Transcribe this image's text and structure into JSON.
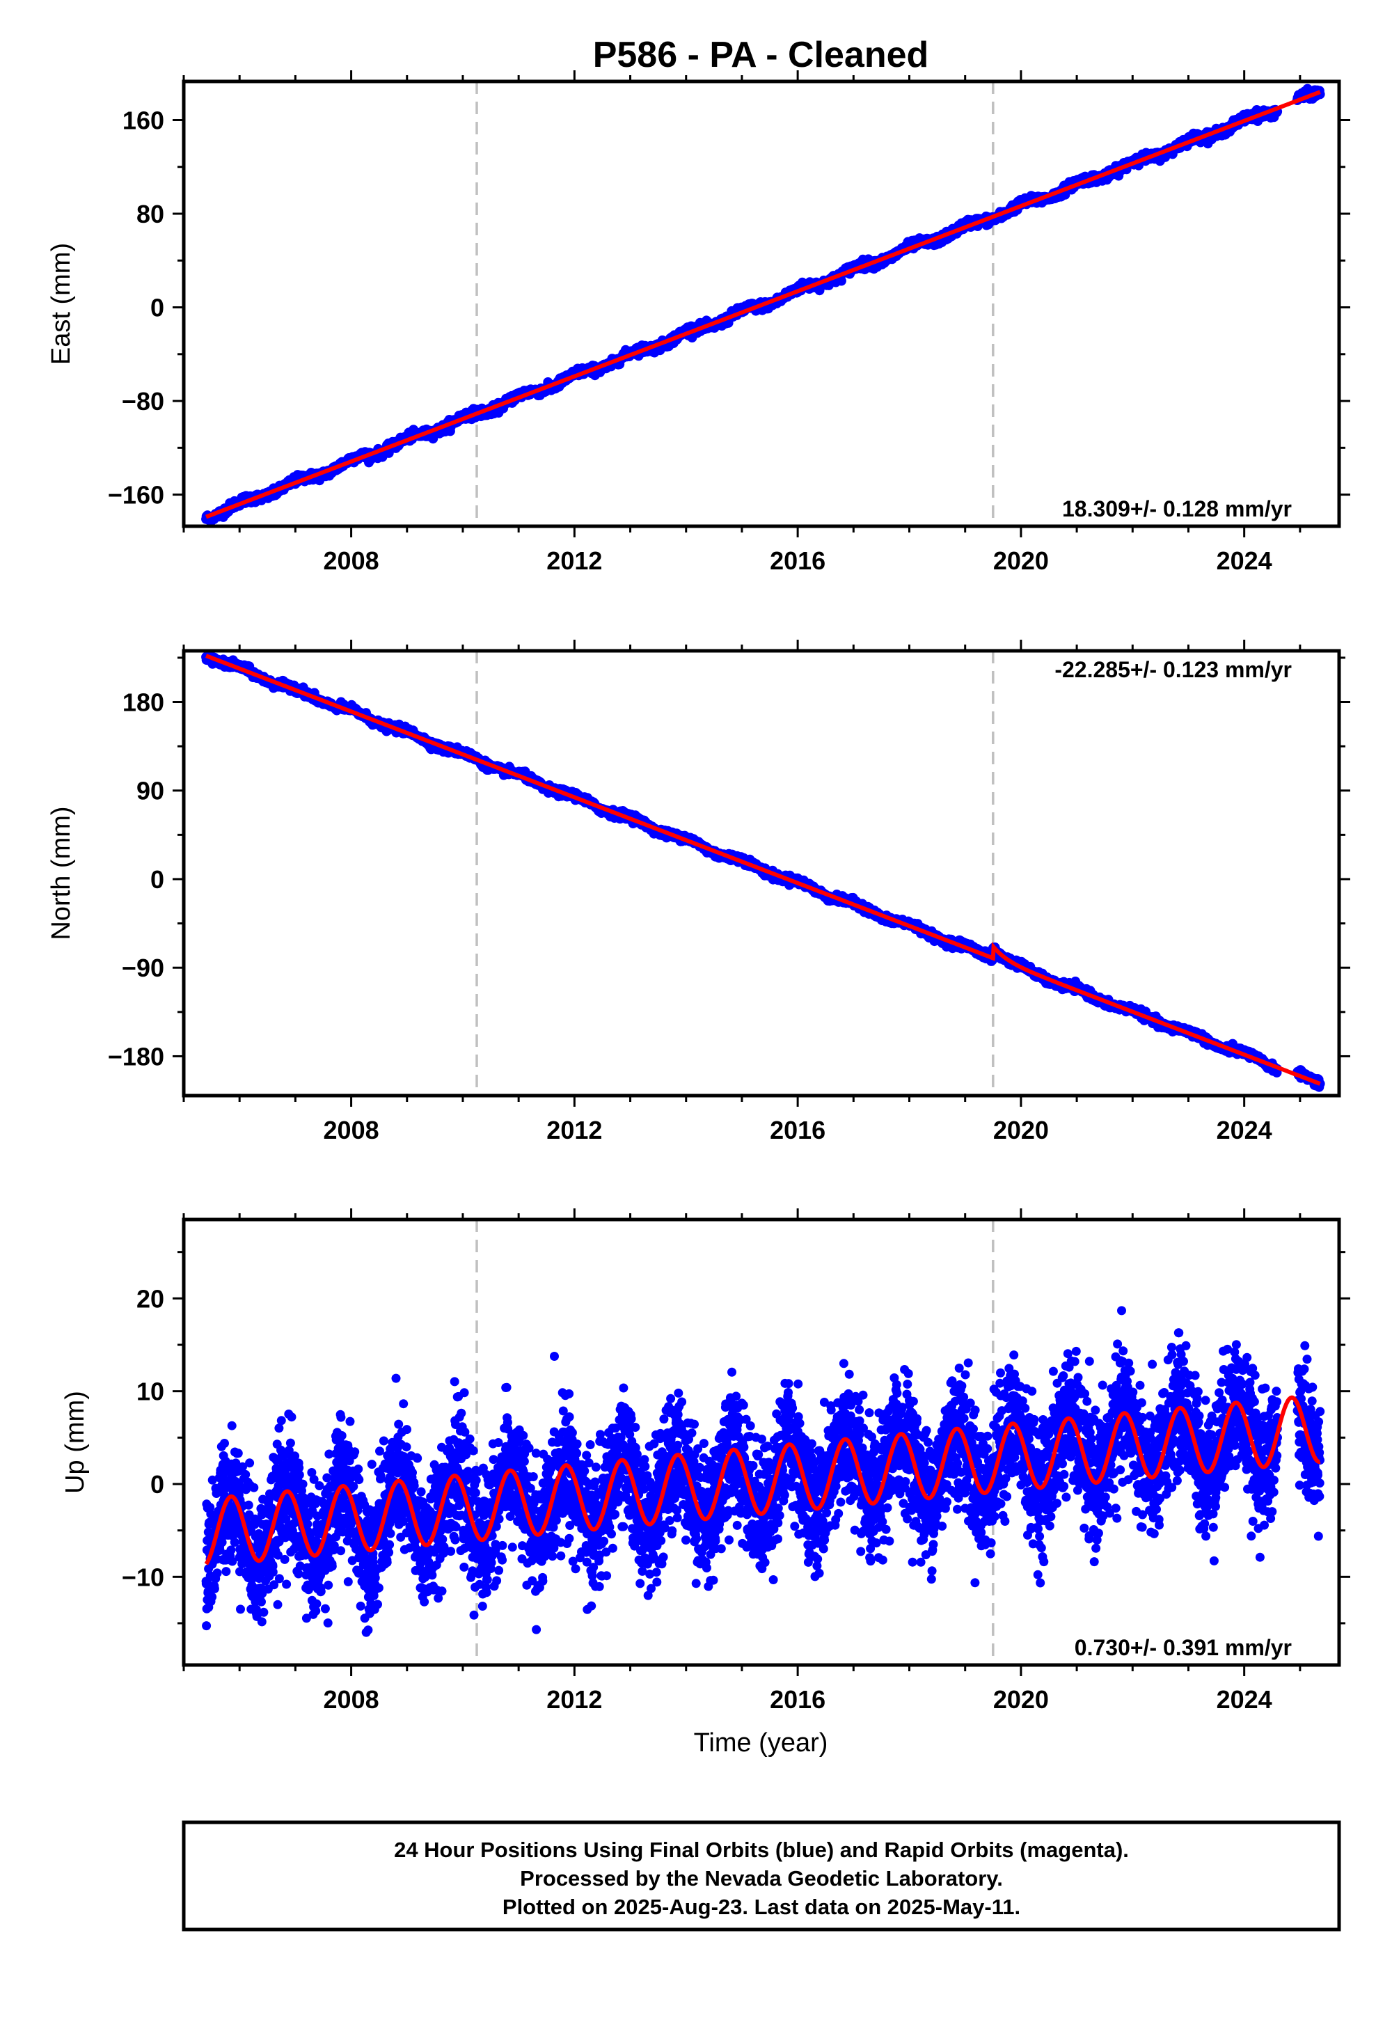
{
  "title": "P586  - PA - Cleaned",
  "xlabel": "Time (year)",
  "colors": {
    "points": "#0000ff",
    "fit": "#ff0000",
    "event_line": "#c0c0c0",
    "frame": "#000000"
  },
  "x_ticks": [
    2008,
    2012,
    2016,
    2020,
    2024
  ],
  "event_years": [
    2010.25,
    2019.5
  ],
  "footer": {
    "line1": "24 Hour Positions Using Final Orbits (blue) and Rapid Orbits (magenta).",
    "line2": "Processed by the Nevada Geodetic Laboratory.",
    "line3": "Plotted on 2025-Aug-23. Last data on 2025-May-11."
  },
  "chart_data": [
    {
      "type": "scatter",
      "component": "east",
      "ylabel": "East (mm)",
      "xlim": [
        2005.0,
        2025.7
      ],
      "ylim": [
        -187,
        193
      ],
      "yticks": [
        160,
        80,
        0,
        -80,
        -160
      ],
      "rate": "18.309+/- 0.128 mm/yr",
      "rate_position": "bottom-right",
      "x_start": 2005.4,
      "x_end": 2025.36,
      "y_start": -179,
      "y_end": 184,
      "annual_amplitude": 2.2,
      "scatter_sd": 1.8,
      "offset_at_2019_5": 0,
      "fit_curve": "line",
      "series": [
        {
          "name": "24 Hour Positions",
          "color": "#0000ff"
        }
      ]
    },
    {
      "type": "scatter",
      "component": "north",
      "ylabel": "North (mm)",
      "xlim": [
        2005.0,
        2025.7
      ],
      "ylim": [
        -220,
        232
      ],
      "yticks": [
        180,
        90,
        0,
        -90,
        -180
      ],
      "rate": "-22.285+/- 0.123 mm/yr",
      "rate_position": "top-right",
      "x_start": 2005.4,
      "x_end": 2025.36,
      "y_start": 227,
      "y_end": -208,
      "annual_amplitude": 2.2,
      "scatter_sd": 1.8,
      "offset_at_2019_5": 12,
      "fit_curve": "line",
      "series": [
        {
          "name": "24 Hour Positions",
          "color": "#0000ff"
        }
      ]
    },
    {
      "type": "scatter",
      "component": "up",
      "ylabel": "Up (mm)",
      "xlim": [
        2005.0,
        2025.7
      ],
      "ylim": [
        -19.5,
        28.5
      ],
      "yticks": [
        20,
        10,
        0,
        -10
      ],
      "rate": "0.730+/- 0.391 mm/yr",
      "rate_position": "bottom-right",
      "x_start": 2005.4,
      "x_end": 2025.36,
      "trend_2005": -5.2,
      "trend_2025": 6.0,
      "annual_amplitude": 3.6,
      "scatter_sd": 3.4,
      "fit_curve": "sinusoid",
      "series": [
        {
          "name": "24 Hour Positions",
          "color": "#0000ff"
        }
      ]
    }
  ]
}
